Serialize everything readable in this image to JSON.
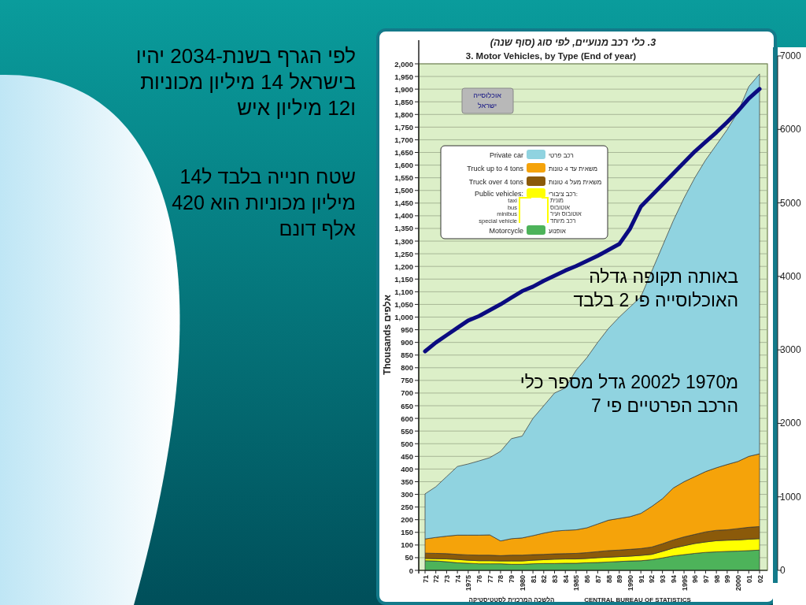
{
  "chart_data": {
    "type": "area",
    "stacked": true,
    "title": "3. כלי רכב מנועיים, לפי סוג (סוף שנה)",
    "subtitle": "3. Motor Vehicles, by Type (End of year)",
    "ylabel": "Thousands אלפים",
    "categories": [
      "71",
      "72",
      "73",
      "74",
      "1975",
      "76",
      "77",
      "78",
      "79",
      "1980",
      "81",
      "82",
      "83",
      "84",
      "1985",
      "86",
      "87",
      "88",
      "89",
      "1990",
      "91",
      "92",
      "93",
      "94",
      "1995",
      "96",
      "97",
      "98",
      "99",
      "2000",
      "01",
      "02"
    ],
    "series": [
      {
        "name": "Motorcycle",
        "color": "#4db35a",
        "values": [
          38,
          37,
          34,
          30,
          28,
          26,
          26,
          26,
          24,
          24,
          26,
          27,
          27,
          28,
          28,
          30,
          31,
          33,
          35,
          37,
          38,
          42,
          49,
          57,
          62,
          67,
          71,
          73,
          75,
          76,
          78,
          80
        ]
      },
      {
        "name": "Public vehicles:",
        "color": "#ffff00",
        "values": [
          9,
          9,
          11,
          13,
          12,
          12,
          12,
          11,
          13,
          13,
          14,
          15,
          17,
          17,
          17,
          17,
          19,
          19,
          19,
          19,
          21,
          21,
          26,
          31,
          35,
          39,
          41,
          44,
          44,
          44,
          45,
          45
        ]
      },
      {
        "name": "Truck over 4 tons",
        "color": "#8b5a0a",
        "values": [
          21,
          21,
          21,
          20,
          21,
          22,
          22,
          21,
          23,
          23,
          22,
          21,
          21,
          21,
          22,
          23,
          24,
          26,
          26,
          27,
          27,
          29,
          30,
          32,
          35,
          36,
          40,
          41,
          41,
          45,
          47,
          48
        ]
      },
      {
        "name": "Truck up to 4 tons",
        "color": "#f5a30a",
        "values": [
          56,
          63,
          69,
          76,
          78,
          79,
          80,
          58,
          65,
          68,
          75,
          84,
          90,
          92,
          93,
          98,
          109,
          120,
          125,
          129,
          139,
          160,
          178,
          205,
          218,
          228,
          238,
          247,
          258,
          265,
          280,
          287
        ]
      },
      {
        "name": "Private car",
        "color": "#90d3e0",
        "values": [
          178,
          200,
          235,
          271,
          281,
          293,
          305,
          354,
          395,
          402,
          463,
          503,
          545,
          562,
          630,
          672,
          717,
          757,
          795,
          828,
          855,
          928,
          997,
          1055,
          1120,
          1180,
          1230,
          1275,
          1322,
          1380,
          1460,
          1500
        ]
      },
      {
        "name": "אוכלוסייה ישראל",
        "type": "line",
        "axis": "y2",
        "color": "#0b0b80",
        "values": [
          2980,
          3100,
          3200,
          3300,
          3400,
          3460,
          3540,
          3620,
          3710,
          3800,
          3860,
          3940,
          4010,
          4080,
          4140,
          4210,
          4280,
          4360,
          4440,
          4650,
          4950,
          5100,
          5250,
          5400,
          5550,
          5700,
          5830,
          5960,
          6100,
          6250,
          6420,
          6550
        ]
      }
    ],
    "ylim": [
      0,
      2000
    ],
    "yticks": [
      0,
      50,
      100,
      150,
      200,
      250,
      300,
      350,
      400,
      450,
      500,
      550,
      600,
      650,
      700,
      750,
      800,
      850,
      900,
      950,
      {
        "value": 1000,
        "label": "1,000"
      },
      {
        "value": 1050,
        "label": "1,050"
      },
      {
        "value": 1100,
        "label": "1,100"
      },
      {
        "value": 1150,
        "label": "1,150"
      },
      {
        "value": 1200,
        "label": "1,200"
      },
      {
        "value": 1250,
        "label": "1,250"
      },
      {
        "value": 1300,
        "label": "1,300"
      },
      {
        "value": 1350,
        "label": "1,350"
      },
      {
        "value": 1400,
        "label": "1,400"
      },
      {
        "value": 1450,
        "label": "1,450"
      },
      {
        "value": 1500,
        "label": "1,500"
      },
      {
        "value": 1550,
        "label": "1,550"
      },
      {
        "value": 1600,
        "label": "1,600"
      },
      {
        "value": 1650,
        "label": "1,650"
      },
      {
        "value": 1700,
        "label": "1,700"
      },
      {
        "value": 1750,
        "label": "1,750"
      },
      {
        "value": 1800,
        "label": "1,800"
      },
      {
        "value": 1850,
        "label": "1,850"
      },
      {
        "value": 1900,
        "label": "1,900"
      },
      {
        "value": 1950,
        "label": "1,950"
      },
      {
        "value": 2000,
        "label": "2,000"
      }
    ],
    "y2lim": [
      0,
      7000
    ],
    "y2ticks": [
      0,
      1000,
      2000,
      3000,
      4000,
      5000,
      6000,
      7000
    ],
    "grid": "y",
    "legend": "top left",
    "marker": "none",
    "annotations": [
      "לפי הגרף בשנת-2034 יהיו בישראל 14 מיליון מכוניות ו12 מיליון איש",
      "שטח חנייה בלבד ל14 מיליון מכוניות הוא 420 אלף דונם",
      "באותה תקופה גדלה האוכלוסייה פי 2 בלבד",
      "מ1970 ל2002 גדל מספר כלי הרכב הפרטיים פי 7",
      "הלשכה המרכזית לסטטיסטיקה",
      "CENTRAL BUREAU OF STATISTICS",
      "אופנוע",
      "רכב ציבורי:",
      "משאית מעל 4 טונות",
      "משאית עד 4 טונות",
      "רכב פרטי",
      "taxi",
      "bus",
      "minibus",
      "special vehicle",
      "מונית",
      "אוטובוס",
      "אוטובוס זעיר",
      "רכב מיוחד"
    ]
  }
}
